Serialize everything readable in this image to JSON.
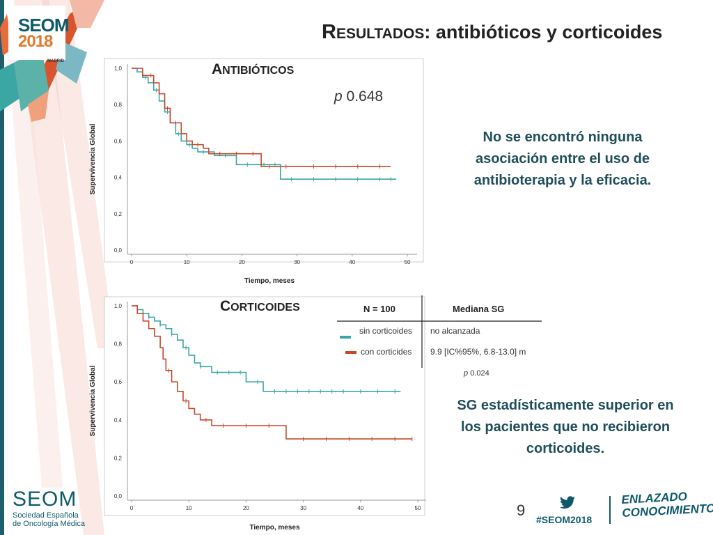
{
  "title": {
    "first_letter": "R",
    "rest": "esultados",
    "suffix": ": antibióticos y corticoides"
  },
  "logo": {
    "brand": "SEOM",
    "year": "2018",
    "city": "MADRID"
  },
  "antibioticos": {
    "label_first": "A",
    "label_rest": "ntibióticos",
    "p_label": "p",
    "p_value": "0.648",
    "conclusion_lines": [
      "No se encontró ninguna",
      "asociación entre el uso de",
      "antibioterapia y la eficacia."
    ]
  },
  "corticoides": {
    "label_first": "C",
    "label_rest": "orticoides",
    "table": {
      "header_n": "N = 100",
      "header_median": "Mediana SG",
      "rows": [
        {
          "group": "sin corticoides",
          "median": "no alcanzada",
          "color": "#3aa7a5"
        },
        {
          "group": "con corticides",
          "median": "9.9 [IC%95%, 6.8-13.0] m",
          "color": "#c8482c"
        }
      ]
    },
    "p_label": "p",
    "p_value": "0.024",
    "conclusion_lines": [
      "SG estadísticamente superior en",
      "los pacientes que no recibieron",
      "corticoides."
    ]
  },
  "chart_data": [
    {
      "type": "line",
      "ylabel": "Supervivencia Global",
      "xlabel": "Tiempo, meses",
      "xlim": [
        0,
        50
      ],
      "ylim": [
        0,
        1
      ],
      "xticks": [
        "0",
        "10",
        "20",
        "30",
        "40",
        "50"
      ],
      "yticks": [
        "0,0",
        "0,2",
        "0,4",
        "0,6",
        "0,8",
        "1,0"
      ],
      "series": [
        {
          "color": "#3aa7a5",
          "steps": [
            [
              0,
              1.0
            ],
            [
              1,
              0.98
            ],
            [
              2,
              0.95
            ],
            [
              3,
              0.92
            ],
            [
              4,
              0.88
            ],
            [
              5,
              0.82
            ],
            [
              6,
              0.76
            ],
            [
              7,
              0.7
            ],
            [
              8,
              0.64
            ],
            [
              9,
              0.6
            ],
            [
              10,
              0.58
            ],
            [
              11,
              0.56
            ],
            [
              12,
              0.54
            ],
            [
              15,
              0.52
            ],
            [
              19,
              0.47
            ],
            [
              23,
              0.47
            ],
            [
              27,
              0.39
            ],
            [
              48,
              0.39
            ]
          ],
          "censors": [
            2.5,
            4.5,
            6.5,
            8.5,
            10.5,
            13,
            17,
            21,
            24,
            26,
            29,
            33,
            37,
            41,
            45,
            47
          ]
        },
        {
          "color": "#c8482c",
          "steps": [
            [
              0,
              1.0
            ],
            [
              2,
              0.96
            ],
            [
              4,
              0.92
            ],
            [
              5,
              0.86
            ],
            [
              6,
              0.78
            ],
            [
              7,
              0.7
            ],
            [
              9,
              0.64
            ],
            [
              10,
              0.6
            ],
            [
              11,
              0.58
            ],
            [
              13,
              0.56
            ],
            [
              14,
              0.53
            ],
            [
              23,
              0.53
            ],
            [
              23.5,
              0.46
            ],
            [
              47,
              0.46
            ]
          ],
          "censors": [
            3.5,
            6.5,
            8,
            12,
            16,
            19,
            22,
            25,
            28,
            33,
            37,
            41,
            45
          ]
        }
      ]
    },
    {
      "type": "line",
      "ylabel": "Supervivencia Global",
      "xlabel": "Tiempo, meses",
      "xlim": [
        0,
        50
      ],
      "ylim": [
        0,
        1
      ],
      "xticks": [
        "0",
        "10",
        "20",
        "30",
        "40",
        "50"
      ],
      "yticks": [
        "0,0",
        "0,2",
        "0,4",
        "0,6",
        "0,8",
        "1,0"
      ],
      "series": [
        {
          "color": "#3aa7a5",
          "steps": [
            [
              0,
              1.0
            ],
            [
              1,
              0.98
            ],
            [
              2,
              0.96
            ],
            [
              3,
              0.94
            ],
            [
              4,
              0.92
            ],
            [
              5,
              0.9
            ],
            [
              6,
              0.88
            ],
            [
              7,
              0.85
            ],
            [
              8,
              0.82
            ],
            [
              9,
              0.78
            ],
            [
              10,
              0.74
            ],
            [
              11,
              0.7
            ],
            [
              12,
              0.68
            ],
            [
              14,
              0.65
            ],
            [
              20,
              0.6
            ],
            [
              23,
              0.55
            ],
            [
              47,
              0.55
            ]
          ],
          "censors": [
            3,
            5,
            7,
            9.5,
            12,
            15,
            17,
            19,
            22,
            25,
            27,
            29,
            31,
            33,
            35,
            37,
            40,
            43,
            46
          ]
        },
        {
          "color": "#c8482c",
          "steps": [
            [
              0,
              1.0
            ],
            [
              1,
              0.96
            ],
            [
              2,
              0.92
            ],
            [
              3,
              0.88
            ],
            [
              4,
              0.84
            ],
            [
              5,
              0.78
            ],
            [
              5.5,
              0.72
            ],
            [
              6,
              0.66
            ],
            [
              7,
              0.6
            ],
            [
              8,
              0.55
            ],
            [
              9,
              0.5
            ],
            [
              10,
              0.46
            ],
            [
              11,
              0.43
            ],
            [
              12,
              0.4
            ],
            [
              14,
              0.37
            ],
            [
              27,
              0.3
            ],
            [
              49,
              0.3
            ]
          ],
          "censors": [
            6.5,
            9.5,
            13,
            16,
            20,
            24,
            30,
            34,
            38,
            42,
            46,
            49
          ]
        }
      ]
    }
  ],
  "footer": {
    "brand": "SEOM",
    "sub1": "Sociedad Española",
    "sub2": "de Oncología Médica",
    "page": "9",
    "hashtag": "#SEOM2018",
    "slogan1": "ENLAZADO",
    "slogan2": "CONOCIMIENTO"
  }
}
